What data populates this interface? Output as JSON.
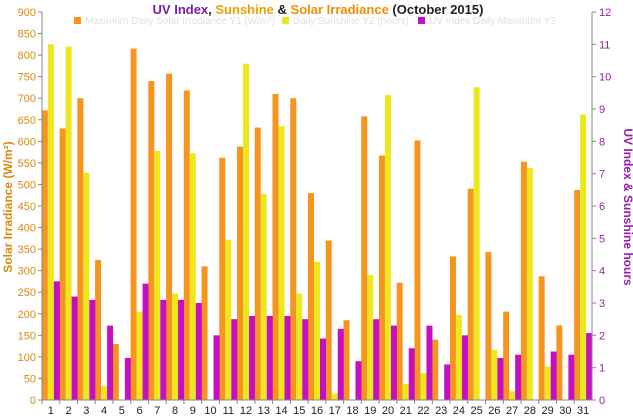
{
  "chart_data": {
    "type": "bar",
    "title_parts": [
      {
        "text": "UV Index",
        "color": "#7b1fa2"
      },
      {
        "text": ", ",
        "color": "#222222"
      },
      {
        "text": "Sunshine",
        "color": "#e8a400"
      },
      {
        "text": " & ",
        "color": "#222222"
      },
      {
        "text": "Solar Irradiance",
        "color": "#f28c00"
      },
      {
        "text": "  (October 2015)",
        "color": "#222222"
      }
    ],
    "ylabel": "Solar Irradiance (W/m²)",
    "y2label": "UV Index & Sunshine hours",
    "ylim": [
      0,
      900
    ],
    "y_ticks": [
      0,
      50,
      100,
      150,
      200,
      250,
      300,
      350,
      400,
      450,
      500,
      550,
      600,
      650,
      700,
      750,
      800,
      850,
      900
    ],
    "y2lim": [
      0,
      12
    ],
    "y2_ticks": [
      0,
      1,
      2,
      3,
      4,
      5,
      6,
      7,
      8,
      9,
      10,
      11,
      12
    ],
    "categories": [
      "1",
      "2",
      "3",
      "4",
      "5",
      "6",
      "7",
      "8",
      "9",
      "10",
      "11",
      "12",
      "13",
      "14",
      "15",
      "16",
      "17",
      "18",
      "19",
      "20",
      "21",
      "22",
      "23",
      "24",
      "25",
      "26",
      "27",
      "28",
      "29",
      "30",
      "31"
    ],
    "legend_position": "top",
    "grid": false,
    "colors": {
      "irradiance": "#f7941d",
      "sunshine": "#ede81e",
      "uv": "#c40fc4",
      "left_axis": "#d98a0b",
      "right_axis": "#9a1ab0"
    },
    "series": [
      {
        "name": "Maximum Daily Solar Irradiance Y1 (W/m²)",
        "axis": "y1",
        "values": [
          672,
          630,
          700,
          325,
          130,
          815,
          740,
          757,
          718,
          310,
          562,
          588,
          632,
          710,
          700,
          480,
          370,
          185,
          658,
          567,
          272,
          602,
          140,
          333,
          490,
          343,
          205,
          553,
          287,
          173,
          487
        ]
      },
      {
        "name": "Daily Sunshine Y2 (hours)",
        "axis": "y2",
        "values": [
          11.0,
          10.93,
          7.03,
          0.43,
          0,
          2.73,
          7.7,
          3.29,
          7.63,
          0,
          4.96,
          10.4,
          6.37,
          8.47,
          3.29,
          4.27,
          0.2,
          0,
          3.87,
          9.43,
          0.5,
          0.83,
          0,
          2.63,
          9.67,
          1.55,
          0.27,
          7.17,
          1.04,
          0,
          8.83
        ]
      },
      {
        "name": "UV Index Daily Maximum Y2",
        "axis": "y2",
        "values": [
          3.67,
          3.2,
          3.1,
          2.3,
          1.3,
          3.6,
          3.1,
          3.1,
          3.0,
          2.0,
          2.5,
          2.6,
          2.6,
          2.6,
          2.5,
          1.9,
          2.2,
          1.2,
          2.5,
          2.3,
          1.6,
          2.3,
          1.1,
          2.0,
          0,
          1.3,
          1.4,
          0,
          1.5,
          1.4,
          2.07
        ]
      }
    ]
  }
}
